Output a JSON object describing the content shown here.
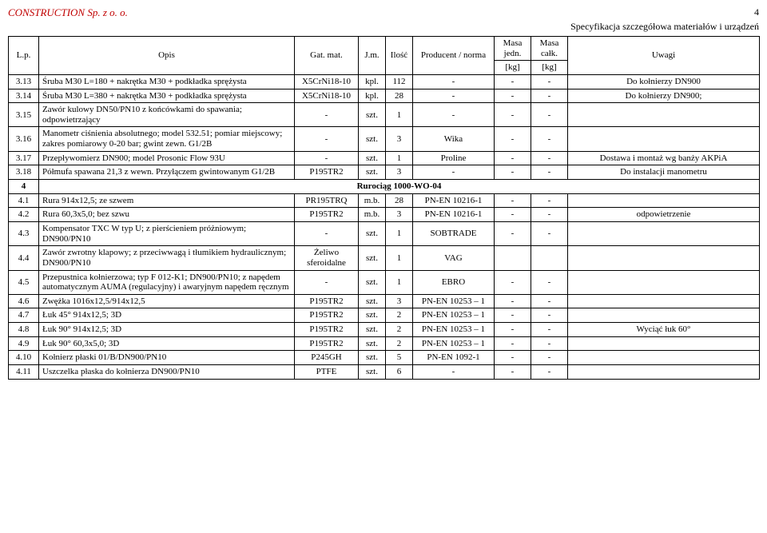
{
  "header": {
    "company": "CONSTRUCTION Sp. z o. o.",
    "pageNum": "4",
    "subtitle": "Specyfikacja szczegółowa materiałów i urządzeń"
  },
  "columns": {
    "lp": "L.p.",
    "opis": "Opis",
    "gat": "Gat. mat.",
    "jm": "J.m.",
    "ilosc": "Ilość",
    "prod": "Producent / norma",
    "mj1": "Masa jedn.",
    "mj2": "[kg]",
    "mc1": "Masa całk.",
    "mc2": "[kg]",
    "uwagi": "Uwagi"
  },
  "rows": [
    {
      "lp": "3.13",
      "opis": "Śruba M30 L=180 + nakrętka M30 + podkładka sprężysta",
      "gat": "X5CrNi18-10",
      "jm": "kpl.",
      "il": "112",
      "prod": "-",
      "mj": "-",
      "mc": "-",
      "uw": "Do kołnierzy DN900"
    },
    {
      "lp": "3.14",
      "opis": "Śruba M30 L=380 + nakrętka M30 + podkładka sprężysta",
      "gat": "X5CrNi18-10",
      "jm": "kpl.",
      "il": "28",
      "prod": "-",
      "mj": "-",
      "mc": "-",
      "uw": "Do kołnierzy DN900;"
    },
    {
      "lp": "3.15",
      "opis": "Zawór kulowy DN50/PN10 z końcówkami do spawania; odpowietrzający",
      "gat": "-",
      "jm": "szt.",
      "il": "1",
      "prod": "-",
      "mj": "-",
      "mc": "-",
      "uw": ""
    },
    {
      "lp": "3.16",
      "opis": "Manometr ciśnienia absolutnego; model 532.51; pomiar miejscowy; zakres pomiarowy 0-20 bar; gwint zewn. G1/2B",
      "gat": "-",
      "jm": "szt.",
      "il": "3",
      "prod": "Wika",
      "mj": "-",
      "mc": "-",
      "uw": ""
    },
    {
      "lp": "3.17",
      "opis": "Przepływomierz DN900; model Prosonic Flow 93U",
      "gat": "-",
      "jm": "szt.",
      "il": "1",
      "prod": "Proline",
      "mj": "-",
      "mc": "-",
      "uw": "Dostawa i montaż wg banży AKPiA"
    },
    {
      "lp": "3.18",
      "opis": "Półmufa spawana 21,3 z wewn. Przyłączem gwintowanym G1/2B",
      "gat": "P195TR2",
      "jm": "szt.",
      "il": "3",
      "prod": "-",
      "mj": "-",
      "mc": "-",
      "uw": "Do instalacji manometru"
    }
  ],
  "section": {
    "lp": "4",
    "title": "Rurociąg 1000-WO-04"
  },
  "rows2": [
    {
      "lp": "4.1",
      "opis": "Rura 914x12,5; ze szwem",
      "gat": "PR195TRQ",
      "jm": "m.b.",
      "il": "28",
      "prod": "PN-EN 10216-1",
      "mj": "-",
      "mc": "-",
      "uw": ""
    },
    {
      "lp": "4.2",
      "opis": "Rura 60,3x5,0; bez szwu",
      "gat": "P195TR2",
      "jm": "m.b.",
      "il": "3",
      "prod": "PN-EN 10216-1",
      "mj": "-",
      "mc": "-",
      "uw": "odpowietrzenie"
    },
    {
      "lp": "4.3",
      "opis": "Kompensator TXC W typ U; z pierścieniem próżniowym; DN900/PN10",
      "gat": "-",
      "jm": "szt.",
      "il": "1",
      "prod": "SOBTRADE",
      "mj": "-",
      "mc": "-",
      "uw": ""
    },
    {
      "lp": "4.4",
      "opis": "Zawór zwrotny klapowy; z przeciwwagą i tłumikiem hydraulicznym; DN900/PN10",
      "gat": "Żeliwo sferoidalne",
      "jm": "szt.",
      "il": "1",
      "prod": "VAG",
      "mj": "",
      "mc": "",
      "uw": ""
    },
    {
      "lp": "4.5",
      "opis": "Przepustnica kołnierzowa; typ F 012-K1; DN900/PN10; z napędem automatycznym AUMA (regulacyjny) i awaryjnym napędem ręcznym",
      "gat": "-",
      "jm": "szt.",
      "il": "1",
      "prod": "EBRO",
      "mj": "-",
      "mc": "-",
      "uw": ""
    },
    {
      "lp": "4.6",
      "opis": "Zwężka 1016x12,5/914x12,5",
      "gat": "P195TR2",
      "jm": "szt.",
      "il": "3",
      "prod": "PN-EN 10253 – 1",
      "mj": "-",
      "mc": "-",
      "uw": ""
    },
    {
      "lp": "4.7",
      "opis": "Łuk 45° 914x12,5; 3D",
      "gat": "P195TR2",
      "jm": "szt.",
      "il": "2",
      "prod": "PN-EN 10253 – 1",
      "mj": "-",
      "mc": "-",
      "uw": ""
    },
    {
      "lp": "4.8",
      "opis": "Łuk 90° 914x12,5; 3D",
      "gat": "P195TR2",
      "jm": "szt.",
      "il": "2",
      "prod": "PN-EN 10253 – 1",
      "mj": "-",
      "mc": "-",
      "uw": "Wyciąć łuk 60°"
    },
    {
      "lp": "4.9",
      "opis": "Łuk 90° 60,3x5,0; 3D",
      "gat": "P195TR2",
      "jm": "szt.",
      "il": "2",
      "prod": "PN-EN 10253 – 1",
      "mj": "-",
      "mc": "-",
      "uw": ""
    },
    {
      "lp": "4.10",
      "opis": "Kołnierz płaski 01/B/DN900/PN10",
      "gat": "P245GH",
      "jm": "szt.",
      "il": "5",
      "prod": "PN-EN 1092-1",
      "mj": "-",
      "mc": "-",
      "uw": ""
    },
    {
      "lp": "4.11",
      "opis": "Uszczelka płaska do kołnierza DN900/PN10",
      "gat": "PTFE",
      "jm": "szt.",
      "il": "6",
      "prod": "-",
      "mj": "-",
      "mc": "-",
      "uw": ""
    }
  ]
}
